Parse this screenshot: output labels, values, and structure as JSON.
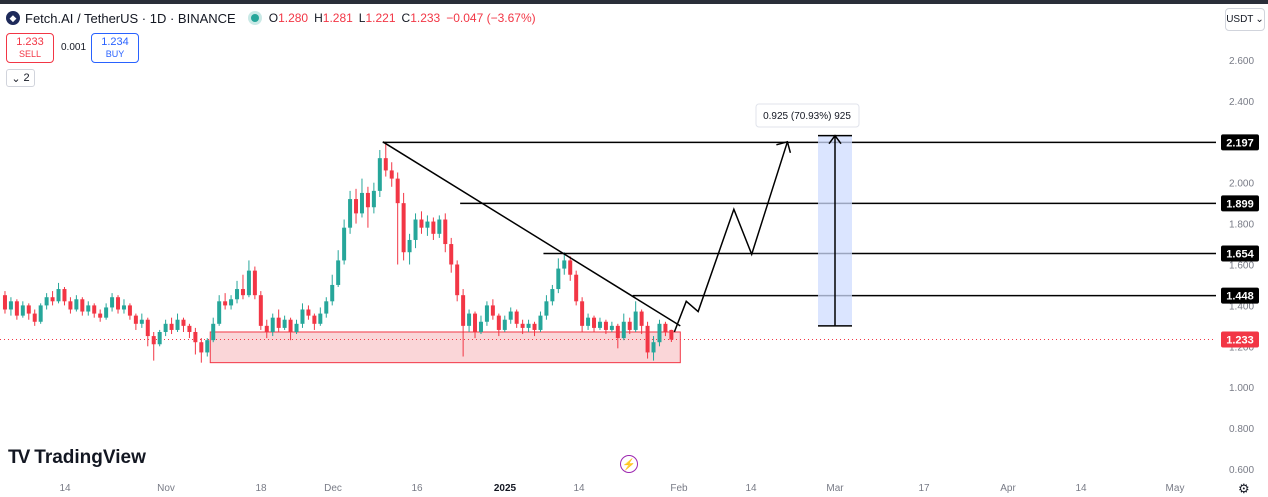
{
  "header": {
    "symbol": "Fetch.AI / TetherUS · 1D · BINANCE",
    "coin_icon": "fetch-logo-icon",
    "open_label": "O",
    "open": "1.280",
    "high_label": "H",
    "high": "1.281",
    "low_label": "L",
    "low": "1.221",
    "close_label": "C",
    "close": "1.233",
    "change": "−0.047 (−3.67%)"
  },
  "trade": {
    "sell_price": "1.233",
    "sell_label": "SELL",
    "spread": "0.001",
    "buy_price": "1.234",
    "buy_label": "BUY",
    "indicators_count": "2"
  },
  "currency": "USDT",
  "branding": {
    "logo_text": "TradingView"
  },
  "colors": {
    "up": "#26a69a",
    "down": "#f23645",
    "zone": "#f8c8cb",
    "projection": "#cfdcff"
  },
  "chart_data": {
    "type": "candlestick",
    "y_ticks": [
      "2.600",
      "2.400",
      "2.200",
      "2.000",
      "1.800",
      "1.600",
      "1.400",
      "1.200",
      "1.000",
      "0.800",
      "0.600"
    ],
    "x_ticks": [
      "14",
      "Nov",
      "18",
      "Dec",
      "16",
      "2025",
      "14",
      "Feb",
      "14",
      "Mar",
      "17",
      "Apr",
      "14",
      "May"
    ],
    "ylim": [
      0.58,
      2.68
    ],
    "price_levels": [
      "2.197",
      "1.899",
      "1.654",
      "1.448"
    ],
    "current_price": "1.233",
    "measure_label": "0.925 (70.93%) 925",
    "support_zone": {
      "from_date": "2024-11-07",
      "to_date": "2025-01-25",
      "low": 1.12,
      "high": 1.27
    },
    "downtrend_line": [
      {
        "date": "2024-12-06",
        "price": 2.2
      },
      {
        "date": "2025-01-25",
        "price": 1.3
      }
    ],
    "projected_path": [
      {
        "date": "2025-01-24",
        "price": 1.27
      },
      {
        "date": "2025-01-26",
        "price": 1.42
      },
      {
        "date": "2025-01-28",
        "price": 1.37
      },
      {
        "date": "2025-02-03",
        "price": 1.87
      },
      {
        "date": "2025-02-06",
        "price": 1.65
      },
      {
        "date": "2025-02-12",
        "price": 2.2
      }
    ],
    "measure": {
      "date": "2025-02-20",
      "from": 1.3,
      "to": 2.23
    },
    "level_start_dates": [
      "2024-12-06",
      "2024-12-19",
      "2025-01-02",
      "2025-01-17"
    ],
    "candles": [
      [
        1.45,
        1.38,
        1.47,
        1.36
      ],
      [
        1.38,
        1.42,
        1.44,
        1.35
      ],
      [
        1.42,
        1.35,
        1.43,
        1.33
      ],
      [
        1.35,
        1.4,
        1.42,
        1.34
      ],
      [
        1.4,
        1.36,
        1.41,
        1.33
      ],
      [
        1.36,
        1.32,
        1.38,
        1.3
      ],
      [
        1.32,
        1.4,
        1.41,
        1.31
      ],
      [
        1.4,
        1.44,
        1.46,
        1.38
      ],
      [
        1.44,
        1.42,
        1.47,
        1.4
      ],
      [
        1.42,
        1.48,
        1.51,
        1.41
      ],
      [
        1.48,
        1.42,
        1.49,
        1.4
      ],
      [
        1.42,
        1.38,
        1.44,
        1.36
      ],
      [
        1.38,
        1.43,
        1.45,
        1.37
      ],
      [
        1.43,
        1.37,
        1.44,
        1.35
      ],
      [
        1.37,
        1.4,
        1.42,
        1.35
      ],
      [
        1.4,
        1.36,
        1.41,
        1.34
      ],
      [
        1.36,
        1.34,
        1.38,
        1.32
      ],
      [
        1.34,
        1.39,
        1.41,
        1.33
      ],
      [
        1.39,
        1.44,
        1.46,
        1.37
      ],
      [
        1.44,
        1.38,
        1.45,
        1.36
      ],
      [
        1.38,
        1.4,
        1.43,
        1.36
      ],
      [
        1.4,
        1.35,
        1.41,
        1.33
      ],
      [
        1.35,
        1.31,
        1.36,
        1.28
      ],
      [
        1.31,
        1.33,
        1.36,
        1.29
      ],
      [
        1.33,
        1.25,
        1.34,
        1.2
      ],
      [
        1.25,
        1.21,
        1.27,
        1.13
      ],
      [
        1.21,
        1.27,
        1.28,
        1.2
      ],
      [
        1.27,
        1.31,
        1.33,
        1.25
      ],
      [
        1.31,
        1.28,
        1.34,
        1.26
      ],
      [
        1.28,
        1.33,
        1.36,
        1.27
      ],
      [
        1.33,
        1.3,
        1.34,
        1.27
      ],
      [
        1.3,
        1.27,
        1.31,
        1.24
      ],
      [
        1.27,
        1.22,
        1.29,
        1.16
      ],
      [
        1.22,
        1.17,
        1.24,
        1.12
      ],
      [
        1.17,
        1.23,
        1.24,
        1.15
      ],
      [
        1.23,
        1.31,
        1.34,
        1.22
      ],
      [
        1.31,
        1.42,
        1.45,
        1.3
      ],
      [
        1.42,
        1.4,
        1.46,
        1.38
      ],
      [
        1.4,
        1.43,
        1.45,
        1.38
      ],
      [
        1.43,
        1.48,
        1.52,
        1.41
      ],
      [
        1.48,
        1.45,
        1.55,
        1.43
      ],
      [
        1.45,
        1.57,
        1.62,
        1.44
      ],
      [
        1.57,
        1.45,
        1.59,
        1.43
      ],
      [
        1.45,
        1.3,
        1.47,
        1.28
      ],
      [
        1.3,
        1.27,
        1.33,
        1.24
      ],
      [
        1.27,
        1.34,
        1.36,
        1.25
      ],
      [
        1.34,
        1.29,
        1.38,
        1.27
      ],
      [
        1.29,
        1.33,
        1.35,
        1.28
      ],
      [
        1.33,
        1.27,
        1.34,
        1.23
      ],
      [
        1.27,
        1.31,
        1.33,
        1.26
      ],
      [
        1.31,
        1.38,
        1.41,
        1.29
      ],
      [
        1.38,
        1.35,
        1.4,
        1.33
      ],
      [
        1.35,
        1.31,
        1.36,
        1.28
      ],
      [
        1.31,
        1.36,
        1.39,
        1.3
      ],
      [
        1.36,
        1.42,
        1.44,
        1.34
      ],
      [
        1.42,
        1.5,
        1.55,
        1.4
      ],
      [
        1.5,
        1.62,
        1.67,
        1.49
      ],
      [
        1.62,
        1.78,
        1.82,
        1.6
      ],
      [
        1.78,
        1.92,
        1.96,
        1.75
      ],
      [
        1.92,
        1.85,
        1.97,
        1.8
      ],
      [
        1.85,
        1.95,
        2.02,
        1.83
      ],
      [
        1.95,
        1.88,
        1.98,
        1.78
      ],
      [
        1.88,
        1.96,
        2.0,
        1.85
      ],
      [
        1.96,
        2.12,
        2.16,
        1.93
      ],
      [
        2.12,
        2.06,
        2.2,
        2.03
      ],
      [
        2.06,
        2.02,
        2.1,
        1.98
      ],
      [
        2.02,
        1.9,
        2.05,
        1.6
      ],
      [
        1.9,
        1.66,
        1.95,
        1.62
      ],
      [
        1.66,
        1.72,
        1.75,
        1.6
      ],
      [
        1.72,
        1.82,
        1.85,
        1.68
      ],
      [
        1.82,
        1.78,
        1.86,
        1.75
      ],
      [
        1.78,
        1.81,
        1.84,
        1.74
      ],
      [
        1.81,
        1.75,
        1.83,
        1.72
      ],
      [
        1.75,
        1.82,
        1.84,
        1.73
      ],
      [
        1.82,
        1.7,
        1.85,
        1.66
      ],
      [
        1.7,
        1.6,
        1.73,
        1.56
      ],
      [
        1.6,
        1.45,
        1.62,
        1.42
      ],
      [
        1.45,
        1.3,
        1.48,
        1.15
      ],
      [
        1.3,
        1.36,
        1.38,
        1.27
      ],
      [
        1.36,
        1.27,
        1.37,
        1.24
      ],
      [
        1.27,
        1.32,
        1.35,
        1.26
      ],
      [
        1.32,
        1.4,
        1.42,
        1.3
      ],
      [
        1.4,
        1.35,
        1.43,
        1.33
      ],
      [
        1.35,
        1.28,
        1.36,
        1.25
      ],
      [
        1.28,
        1.33,
        1.35,
        1.27
      ],
      [
        1.33,
        1.37,
        1.39,
        1.31
      ],
      [
        1.37,
        1.31,
        1.38,
        1.29
      ],
      [
        1.31,
        1.29,
        1.33,
        1.26
      ],
      [
        1.29,
        1.31,
        1.33,
        1.27
      ],
      [
        1.31,
        1.28,
        1.32,
        1.25
      ],
      [
        1.28,
        1.35,
        1.37,
        1.27
      ],
      [
        1.35,
        1.42,
        1.45,
        1.33
      ],
      [
        1.42,
        1.48,
        1.5,
        1.4
      ],
      [
        1.48,
        1.58,
        1.63,
        1.46
      ],
      [
        1.58,
        1.62,
        1.66,
        1.55
      ],
      [
        1.62,
        1.55,
        1.64,
        1.52
      ],
      [
        1.55,
        1.42,
        1.57,
        1.4
      ],
      [
        1.42,
        1.3,
        1.44,
        1.27
      ],
      [
        1.3,
        1.34,
        1.36,
        1.28
      ],
      [
        1.34,
        1.29,
        1.35,
        1.27
      ],
      [
        1.29,
        1.32,
        1.34,
        1.28
      ],
      [
        1.32,
        1.28,
        1.33,
        1.26
      ],
      [
        1.28,
        1.3,
        1.32,
        1.27
      ],
      [
        1.3,
        1.24,
        1.31,
        1.19
      ],
      [
        1.24,
        1.32,
        1.36,
        1.23
      ],
      [
        1.32,
        1.28,
        1.34,
        1.26
      ],
      [
        1.28,
        1.37,
        1.42,
        1.27
      ],
      [
        1.37,
        1.3,
        1.38,
        1.26
      ],
      [
        1.3,
        1.17,
        1.32,
        1.14
      ],
      [
        1.17,
        1.22,
        1.25,
        1.13
      ],
      [
        1.22,
        1.31,
        1.33,
        1.2
      ],
      [
        1.31,
        1.27,
        1.32,
        1.25
      ],
      [
        1.28,
        1.233,
        1.281,
        1.221
      ]
    ]
  }
}
